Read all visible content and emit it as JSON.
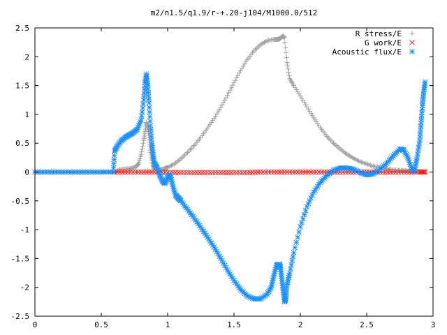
{
  "chart_data": {
    "type": "scatter",
    "title": "m2/n1.5/q1.9/r-+.20-j104/M1000.0/512",
    "xlabel": "",
    "ylabel": "",
    "xlim": [
      0,
      3
    ],
    "ylim": [
      -2.5,
      2.5
    ],
    "x_ticks": [
      "0",
      "0.5",
      "1",
      "1.5",
      "2",
      "2.5",
      "3"
    ],
    "y_ticks": [
      "2.5",
      "2",
      "1.5",
      "1",
      "0.5",
      "0",
      "-0.5",
      "-1",
      "-1.5",
      "-2",
      "-2.5"
    ],
    "grid": false,
    "legend_position": "top-right",
    "series": [
      {
        "name": "R stress/E",
        "color": "#a0a0a0",
        "marker": "plus",
        "points": [
          [
            0.6,
            0.0
          ],
          [
            0.64,
            0.04
          ],
          [
            0.68,
            0.05
          ],
          [
            0.72,
            0.06
          ],
          [
            0.76,
            0.09
          ],
          [
            0.78,
            0.14
          ],
          [
            0.8,
            0.3
          ],
          [
            0.82,
            0.55
          ],
          [
            0.83,
            0.7
          ],
          [
            0.84,
            0.86
          ],
          [
            0.85,
            0.78
          ],
          [
            0.86,
            0.6
          ],
          [
            0.87,
            0.4
          ],
          [
            0.88,
            0.25
          ],
          [
            0.89,
            0.12
          ],
          [
            0.9,
            0.06
          ],
          [
            0.92,
            0.03
          ],
          [
            0.95,
            0.04
          ],
          [
            0.98,
            0.06
          ],
          [
            1.0,
            0.08
          ],
          [
            1.05,
            0.14
          ],
          [
            1.1,
            0.23
          ],
          [
            1.15,
            0.34
          ],
          [
            1.2,
            0.46
          ],
          [
            1.25,
            0.6
          ],
          [
            1.3,
            0.76
          ],
          [
            1.35,
            0.93
          ],
          [
            1.4,
            1.12
          ],
          [
            1.45,
            1.33
          ],
          [
            1.5,
            1.55
          ],
          [
            1.55,
            1.76
          ],
          [
            1.6,
            1.95
          ],
          [
            1.65,
            2.1
          ],
          [
            1.7,
            2.21
          ],
          [
            1.75,
            2.28
          ],
          [
            1.8,
            2.3
          ],
          [
            1.83,
            2.3
          ],
          [
            1.85,
            2.32
          ],
          [
            1.87,
            2.36
          ],
          [
            1.88,
            2.33
          ],
          [
            1.9,
            1.9
          ],
          [
            1.92,
            1.62
          ],
          [
            1.95,
            1.5
          ],
          [
            2.0,
            1.32
          ],
          [
            2.05,
            1.13
          ],
          [
            2.1,
            0.94
          ],
          [
            2.15,
            0.77
          ],
          [
            2.2,
            0.62
          ],
          [
            2.25,
            0.5
          ],
          [
            2.3,
            0.4
          ],
          [
            2.35,
            0.31
          ],
          [
            2.4,
            0.24
          ],
          [
            2.45,
            0.18
          ],
          [
            2.5,
            0.14
          ],
          [
            2.55,
            0.1
          ],
          [
            2.6,
            0.08
          ],
          [
            2.65,
            0.06
          ],
          [
            2.7,
            0.04
          ],
          [
            2.75,
            0.03
          ],
          [
            2.8,
            0.02
          ],
          [
            2.85,
            0.01
          ],
          [
            2.9,
            0.01
          ],
          [
            2.93,
            0.0
          ]
        ]
      },
      {
        "name": "G work/E",
        "color": "#ff2020",
        "marker": "cross",
        "points": [
          [
            0.6,
            0.0
          ],
          [
            0.7,
            0.0
          ],
          [
            0.8,
            0.0
          ],
          [
            0.9,
            0.0
          ],
          [
            1.0,
            -0.01
          ],
          [
            1.1,
            -0.01
          ],
          [
            1.2,
            -0.01
          ],
          [
            1.3,
            -0.01
          ],
          [
            1.4,
            -0.01
          ],
          [
            1.5,
            -0.01
          ],
          [
            1.6,
            -0.01
          ],
          [
            1.7,
            0.0
          ],
          [
            1.8,
            0.0
          ],
          [
            1.9,
            0.0
          ],
          [
            2.0,
            0.0
          ],
          [
            2.1,
            0.0
          ],
          [
            2.2,
            0.0
          ],
          [
            2.3,
            0.0
          ],
          [
            2.4,
            0.0
          ],
          [
            2.5,
            0.0
          ],
          [
            2.6,
            0.0
          ],
          [
            2.7,
            0.0
          ],
          [
            2.8,
            0.0
          ],
          [
            2.9,
            0.0
          ],
          [
            2.94,
            0.0
          ]
        ]
      },
      {
        "name": "Acoustic flux/E",
        "color": "#1e90ff",
        "marker": "star",
        "points": [
          [
            0.0,
            0.0
          ],
          [
            0.1,
            0.0
          ],
          [
            0.2,
            0.0
          ],
          [
            0.3,
            0.0
          ],
          [
            0.4,
            0.0
          ],
          [
            0.5,
            0.0
          ],
          [
            0.59,
            0.0
          ],
          [
            0.6,
            0.36
          ],
          [
            0.62,
            0.45
          ],
          [
            0.65,
            0.54
          ],
          [
            0.68,
            0.6
          ],
          [
            0.71,
            0.64
          ],
          [
            0.74,
            0.68
          ],
          [
            0.77,
            0.74
          ],
          [
            0.8,
            0.9
          ],
          [
            0.82,
            1.25
          ],
          [
            0.83,
            1.55
          ],
          [
            0.84,
            1.7
          ],
          [
            0.85,
            1.5
          ],
          [
            0.86,
            1.2
          ],
          [
            0.87,
            0.8
          ],
          [
            0.88,
            0.5
          ],
          [
            0.89,
            0.3
          ],
          [
            0.9,
            0.15
          ],
          [
            0.92,
            0.08
          ],
          [
            0.94,
            -0.05
          ],
          [
            0.96,
            -0.15
          ],
          [
            0.98,
            -0.2
          ],
          [
            1.0,
            -0.1
          ],
          [
            1.02,
            -0.05
          ],
          [
            1.04,
            -0.25
          ],
          [
            1.06,
            -0.4
          ],
          [
            1.08,
            -0.45
          ],
          [
            1.1,
            -0.5
          ],
          [
            1.15,
            -0.65
          ],
          [
            1.2,
            -0.8
          ],
          [
            1.25,
            -0.96
          ],
          [
            1.3,
            -1.13
          ],
          [
            1.35,
            -1.3
          ],
          [
            1.4,
            -1.5
          ],
          [
            1.45,
            -1.7
          ],
          [
            1.5,
            -1.88
          ],
          [
            1.55,
            -2.04
          ],
          [
            1.6,
            -2.15
          ],
          [
            1.65,
            -2.2
          ],
          [
            1.7,
            -2.2
          ],
          [
            1.75,
            -2.12
          ],
          [
            1.78,
            -2.0
          ],
          [
            1.8,
            -1.8
          ],
          [
            1.82,
            -1.62
          ],
          [
            1.84,
            -1.6
          ],
          [
            1.85,
            -1.65
          ],
          [
            1.86,
            -1.85
          ],
          [
            1.87,
            -2.05
          ],
          [
            1.88,
            -2.25
          ],
          [
            1.89,
            -2.2
          ],
          [
            1.9,
            -1.95
          ],
          [
            1.92,
            -1.75
          ],
          [
            1.95,
            -1.4
          ],
          [
            2.0,
            -0.95
          ],
          [
            2.05,
            -0.6
          ],
          [
            2.1,
            -0.35
          ],
          [
            2.15,
            -0.18
          ],
          [
            2.2,
            -0.06
          ],
          [
            2.25,
            0.03
          ],
          [
            2.3,
            0.07
          ],
          [
            2.35,
            0.07
          ],
          [
            2.4,
            0.05
          ],
          [
            2.45,
            -0.01
          ],
          [
            2.5,
            -0.05
          ],
          [
            2.55,
            -0.03
          ],
          [
            2.6,
            0.05
          ],
          [
            2.65,
            0.15
          ],
          [
            2.7,
            0.28
          ],
          [
            2.75,
            0.4
          ],
          [
            2.78,
            0.38
          ],
          [
            2.81,
            0.25
          ],
          [
            2.84,
            0.05
          ],
          [
            2.86,
            0.02
          ],
          [
            2.88,
            0.25
          ],
          [
            2.9,
            0.55
          ],
          [
            2.91,
            0.85
          ],
          [
            2.92,
            1.15
          ],
          [
            2.93,
            1.4
          ],
          [
            2.94,
            1.56
          ]
        ]
      }
    ]
  }
}
